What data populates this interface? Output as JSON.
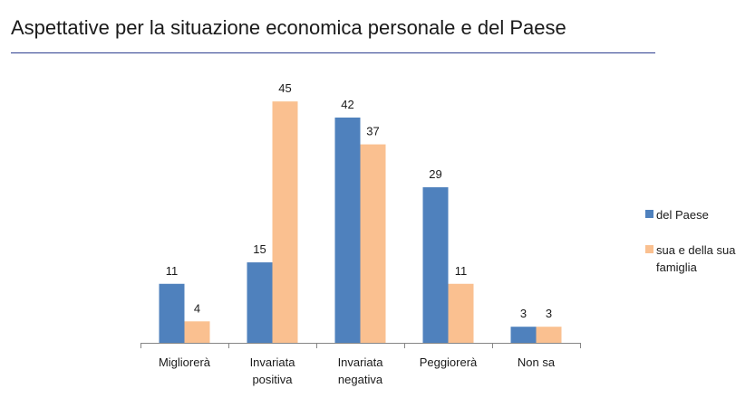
{
  "chart_data": {
    "type": "bar",
    "title": "Aspettative per la situazione economica personale e del Paese",
    "categories": [
      [
        "Migliorerà"
      ],
      [
        "Invariata",
        "positiva"
      ],
      [
        "Invariata",
        "negativa"
      ],
      [
        "Peggiorerà"
      ],
      [
        "Non sa"
      ]
    ],
    "series": [
      {
        "name": "del Paese",
        "values": [
          11,
          15,
          42,
          29,
          3
        ],
        "color": "#4f81bd"
      },
      {
        "name": "sua e della sua famiglia",
        "values": [
          4,
          45,
          37,
          11,
          3
        ],
        "color": "#fac090"
      }
    ],
    "ylim": [
      0,
      50
    ],
    "grid": false,
    "legend_position": "right"
  }
}
